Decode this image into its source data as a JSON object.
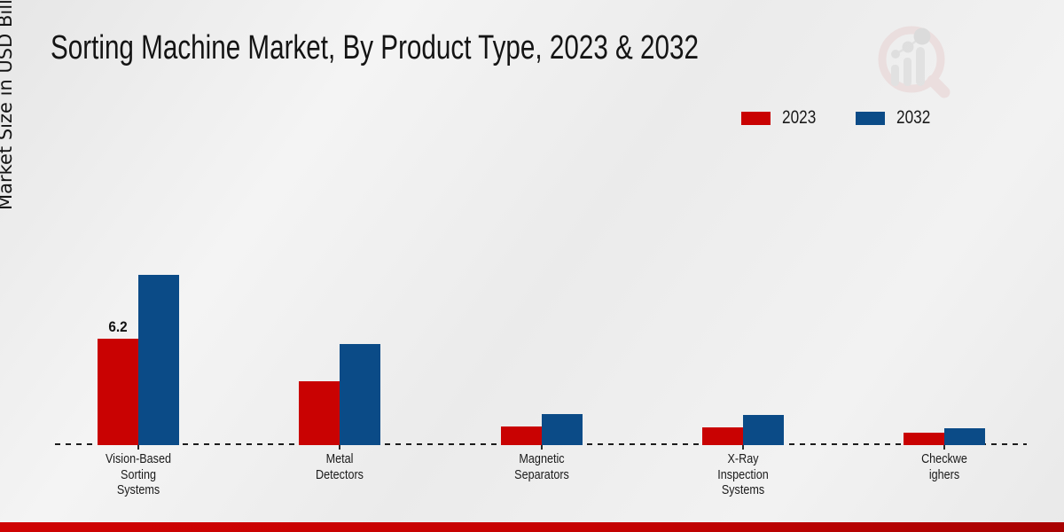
{
  "title": "Sorting Machine Market, By Product Type, 2023 & 2032",
  "ylabel": "Market Size in USD Billion",
  "legend": [
    {
      "label": "2023",
      "color": "#c90202"
    },
    {
      "label": "2032",
      "color": "#0b4b87"
    }
  ],
  "watermark_icon": "magnifier-bar-chart-logo",
  "footer_color": "#c40202",
  "chart_data": {
    "type": "bar",
    "title": "Sorting Machine Market, By Product Type, 2023 & 2032",
    "xlabel": "",
    "ylabel": "Market Size in USD Billion",
    "categories": [
      "Vision-Based Sorting Systems",
      "Metal Detectors",
      "Magnetic Separators",
      "X-Ray Inspection Systems",
      "Checkweighers"
    ],
    "category_label_lines": [
      [
        "Vision-Based",
        "Sorting",
        "Systems"
      ],
      [
        "Metal",
        "Detectors"
      ],
      [
        "Magnetic",
        "Separators"
      ],
      [
        "X-Ray",
        "Inspection",
        "Systems"
      ],
      [
        "Checkwe",
        "ighers"
      ]
    ],
    "series": [
      {
        "name": "2023",
        "color": "#c90202",
        "values": [
          6.2,
          3.7,
          1.1,
          1.05,
          0.7
        ]
      },
      {
        "name": "2032",
        "color": "#0b4b87",
        "values": [
          9.9,
          5.9,
          1.8,
          1.75,
          1.0
        ]
      }
    ],
    "data_labels": [
      {
        "series": "2023",
        "category_index": 0,
        "text": "6.2"
      }
    ],
    "ylim": [
      0,
      10.5
    ],
    "grid": false,
    "axis_line": "dashed-baseline-only",
    "legend_position": "top-right"
  }
}
